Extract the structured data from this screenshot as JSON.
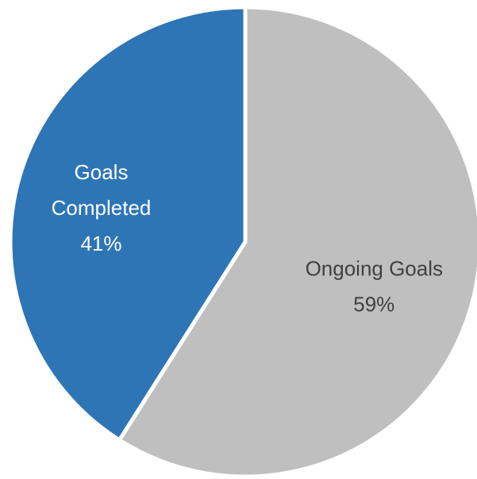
{
  "chart_data": {
    "type": "pie",
    "slices": [
      {
        "label": "Ongoing Goals",
        "value": 59,
        "percent_label": "59%",
        "color": "#bfbfbf",
        "label_color": "#404040"
      },
      {
        "label": "Goals Completed",
        "value": 41,
        "percent_label": "41%",
        "color": "#2e75b6",
        "label_color": "#ffffff"
      }
    ],
    "start": "12 o'clock",
    "direction": "clockwise",
    "legend": "none",
    "labels_inside": true
  }
}
